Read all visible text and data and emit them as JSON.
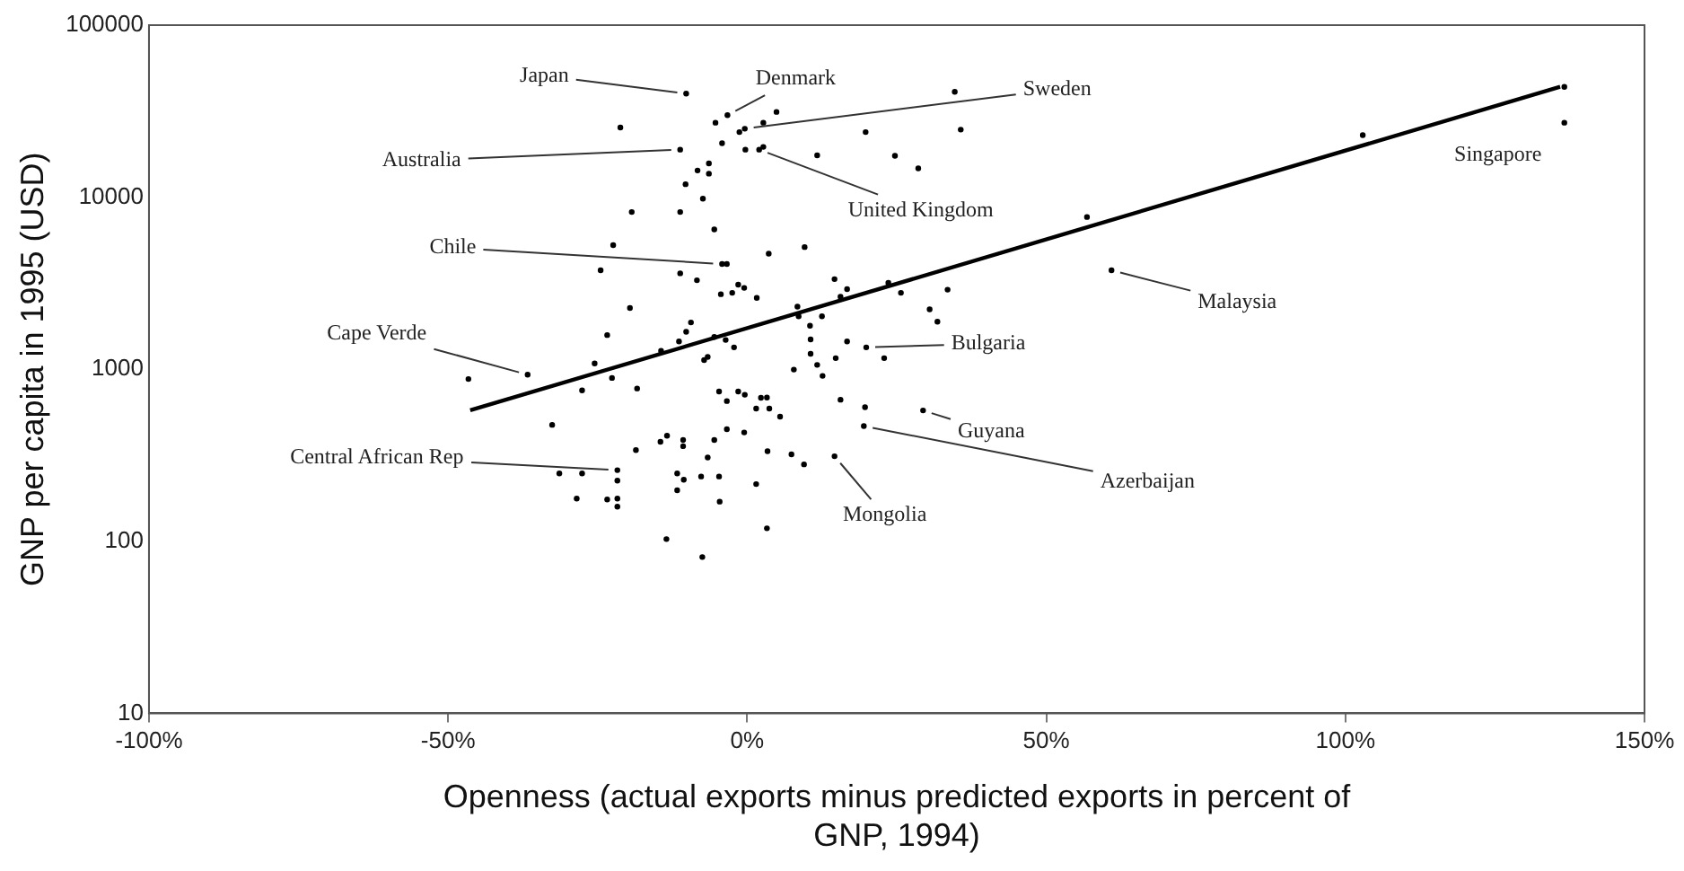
{
  "chart_data": {
    "type": "scatter",
    "xlabel": "Openness (actual exports minus predicted exports in percent of GNP, 1994)",
    "ylabel": "GNP per capita in 1995 (USD)",
    "xlim": [
      -100,
      150
    ],
    "xticks": [
      {
        "value": -100,
        "label": "-100%"
      },
      {
        "value": -50,
        "label": "-50%"
      },
      {
        "value": 0,
        "label": "0%"
      },
      {
        "value": 50,
        "label": "50%"
      },
      {
        "value": 100,
        "label": "100%"
      },
      {
        "value": 150,
        "label": "150%"
      }
    ],
    "ylim": [
      10,
      100000
    ],
    "yticks": [
      10,
      100,
      1000,
      10000,
      100000
    ],
    "log": "y",
    "grid": false,
    "legend": false,
    "marker": "circle",
    "series": [
      {
        "type": "scatter",
        "color": "#000000",
        "x": [
          -10.2,
          -3.3,
          -5.3,
          -21.2,
          2.7,
          4.9,
          34.7,
          -1.3,
          -0.4,
          -4.2,
          -11.2,
          -0.3,
          2.0,
          2.7,
          11.7,
          19.8,
          35.7,
          24.7,
          28.6,
          -8.3,
          -6.4,
          -6.4,
          -10.3,
          -7.4,
          -19.3,
          -11.2,
          -5.5,
          -22.4,
          3.6,
          9.6,
          -4.2,
          -3.4,
          -24.5,
          -11.2,
          -8.4,
          -4.4,
          -2.5,
          -1.5,
          -0.5,
          1.6,
          14.6,
          15.6,
          16.7,
          23.6,
          25.7,
          33.5,
          30.5,
          31.8,
          8.4,
          8.6,
          12.5,
          10.5,
          -19.6,
          -9.4,
          -11.4,
          -10.2,
          -14.4,
          -5.5,
          -3.6,
          -2.2,
          -23.4,
          -25.5,
          -22.6,
          -27.6,
          -18.4,
          -36.7,
          -6.6,
          -7.2,
          10.6,
          10.6,
          16.7,
          19.9,
          22.9,
          7.8,
          11.7,
          14.8,
          12.6,
          15.6,
          19.7,
          29.4,
          19.5,
          14.6,
          9.5,
          7.4,
          3.4,
          1.5,
          3.3,
          -4.7,
          -3.4,
          -1.5,
          -0.4,
          1.5,
          2.3,
          3.3,
          3.7,
          5.5,
          -0.5,
          -3.4,
          -5.5,
          -6.6,
          -18.6,
          -14.5,
          -13.4,
          -10.7,
          -10.7,
          -32.6,
          -31.4,
          -27.6,
          -21.7,
          -21.7,
          -21.7,
          -21.7,
          -23.4,
          -28.5,
          -11.7,
          -10.6,
          -11.7,
          -7.7,
          -4.7,
          -4.6,
          -13.5,
          -7.5,
          -46.6,
          56.8,
          60.9,
          102.9,
          136.6,
          136.6
        ],
        "values": [
          40000,
          30000,
          27100,
          25400,
          27100,
          31300,
          41000,
          23900,
          25000,
          20600,
          18900,
          18900,
          18900,
          19600,
          17500,
          23900,
          24700,
          17400,
          14700,
          14300,
          15700,
          13700,
          11900,
          9800,
          8200,
          8200,
          6500,
          5260,
          4700,
          5130,
          4090,
          4090,
          3760,
          3610,
          3290,
          2730,
          2780,
          3100,
          2970,
          2600,
          3340,
          2640,
          2920,
          3180,
          2780,
          2900,
          2230,
          1890,
          2310,
          2030,
          2030,
          1790,
          2270,
          1870,
          1450,
          1650,
          1280,
          1540,
          1480,
          1340,
          1580,
          1080,
          890,
          754,
          773,
          930,
          1180,
          1130,
          1490,
          1230,
          1450,
          1340,
          1160,
          995,
          1060,
          1160,
          915,
          665,
          601,
          576,
          467,
          312,
          280,
          320,
          334,
          215,
          119,
          742,
          653,
          742,
          711,
          591,
          682,
          685,
          591,
          530,
          429,
          448,
          388,
          307,
          339,
          379,
          411,
          388,
          357,
          475,
          248,
          248,
          259,
          225,
          177,
          159,
          175,
          177,
          248,
          228,
          198,
          238,
          238,
          170,
          103,
          81,
          877,
          7670,
          3760,
          22960,
          27100,
          43800
        ]
      },
      {
        "type": "line",
        "color": "#000000",
        "marker": "none",
        "x": [
          -46.3,
          135.9
        ],
        "values": [
          577,
          43800
        ]
      }
    ],
    "annotations": [
      {
        "text": "Japan",
        "x": -10.2,
        "y": 40000
      },
      {
        "text": "Denmark",
        "x": -3.3,
        "y": 30000
      },
      {
        "text": "Sweden",
        "x": -0.4,
        "y": 25000
      },
      {
        "text": "Australia",
        "x": -11.2,
        "y": 18900
      },
      {
        "text": "United Kingdom",
        "x": 2.0,
        "y": 18900
      },
      {
        "text": "Chile",
        "x": -4.2,
        "y": 4090
      },
      {
        "text": "Cape Verde",
        "x": -36.7,
        "y": 930
      },
      {
        "text": "Central African Rep",
        "x": -21.7,
        "y": 259
      },
      {
        "text": "Bulgaria",
        "x": 19.9,
        "y": 1340
      },
      {
        "text": "Guyana",
        "x": 29.4,
        "y": 576
      },
      {
        "text": "Azerbaijan",
        "x": 19.5,
        "y": 467
      },
      {
        "text": "Mongolia",
        "x": 14.6,
        "y": 312
      },
      {
        "text": "Malaysia",
        "x": 60.9,
        "y": 3760
      },
      {
        "text": "Singapore",
        "x": 136.6,
        "y": 27100
      }
    ]
  }
}
